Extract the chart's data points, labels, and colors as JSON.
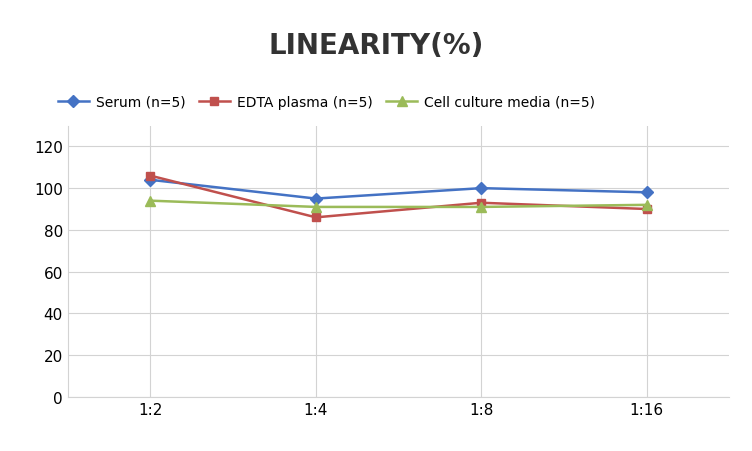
{
  "title": "LINEARITY(%)",
  "x_labels": [
    "1:2",
    "1:4",
    "1:8",
    "1:16"
  ],
  "x_positions": [
    0,
    1,
    2,
    3
  ],
  "series": [
    {
      "label": "Serum (n=5)",
      "values": [
        104,
        95,
        100,
        98
      ],
      "color": "#4472C4",
      "marker": "D",
      "markersize": 6,
      "linewidth": 1.8
    },
    {
      "label": "EDTA plasma (n=5)",
      "values": [
        106,
        86,
        93,
        90
      ],
      "color": "#C0504D",
      "marker": "s",
      "markersize": 6,
      "linewidth": 1.8
    },
    {
      "label": "Cell culture media (n=5)",
      "values": [
        94,
        91,
        91,
        92
      ],
      "color": "#9BBB59",
      "marker": "^",
      "markersize": 7,
      "linewidth": 1.8
    }
  ],
  "ylim": [
    0,
    130
  ],
  "yticks": [
    0,
    20,
    40,
    60,
    80,
    100,
    120
  ],
  "background_color": "#ffffff",
  "grid_color": "#d3d3d3",
  "title_fontsize": 20,
  "legend_fontsize": 10,
  "tick_fontsize": 11
}
